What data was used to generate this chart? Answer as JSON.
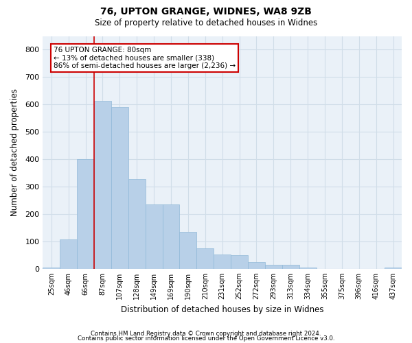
{
  "title1": "76, UPTON GRANGE, WIDNES, WA8 9ZB",
  "title2": "Size of property relative to detached houses in Widnes",
  "xlabel": "Distribution of detached houses by size in Widnes",
  "ylabel": "Number of detached properties",
  "footer1": "Contains HM Land Registry data © Crown copyright and database right 2024.",
  "footer2": "Contains public sector information licensed under the Open Government Licence v3.0.",
  "bins": [
    "25sqm",
    "46sqm",
    "66sqm",
    "87sqm",
    "107sqm",
    "128sqm",
    "149sqm",
    "169sqm",
    "190sqm",
    "210sqm",
    "231sqm",
    "252sqm",
    "272sqm",
    "293sqm",
    "313sqm",
    "334sqm",
    "355sqm",
    "375sqm",
    "396sqm",
    "416sqm",
    "437sqm"
  ],
  "values": [
    5,
    107,
    400,
    614,
    590,
    328,
    235,
    235,
    135,
    75,
    52,
    50,
    25,
    15,
    15,
    5,
    0,
    0,
    0,
    0,
    5
  ],
  "bar_color": "#b8d0e8",
  "bar_edge_color": "#90b8d8",
  "grid_color": "#d0dde8",
  "bg_color": "#eaf1f8",
  "vline_color": "#cc0000",
  "annotation_text": "76 UPTON GRANGE: 80sqm\n← 13% of detached houses are smaller (338)\n86% of semi-detached houses are larger (2,236) →",
  "annotation_box_color": "#cc0000",
  "ylim": [
    0,
    850
  ],
  "yticks": [
    0,
    100,
    200,
    300,
    400,
    500,
    600,
    700,
    800
  ]
}
